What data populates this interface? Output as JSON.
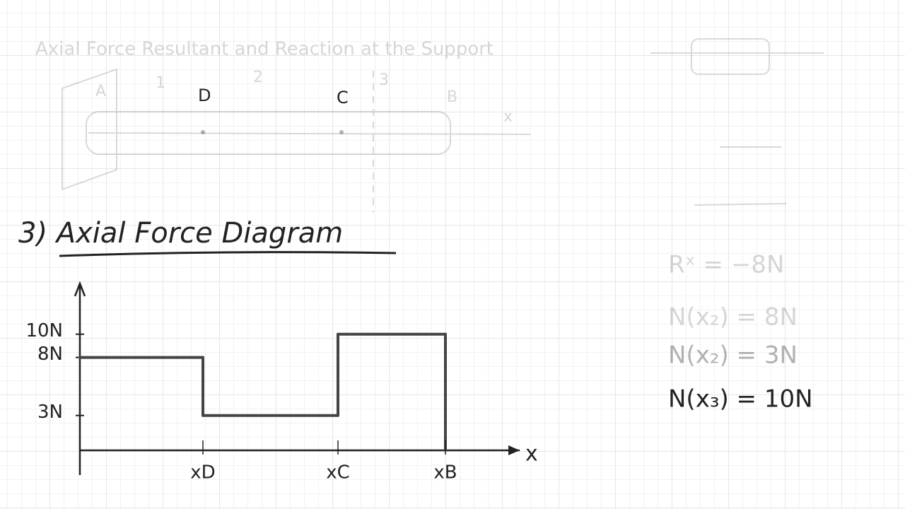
{
  "heading": "Axial Force Resultant and Reaction at the Support",
  "beam": {
    "points": [
      "A",
      "D",
      "C",
      "B"
    ],
    "sections": [
      "1",
      "2",
      "3"
    ],
    "axis": "x"
  },
  "section_title": "3)  Axial Force Diagram",
  "chart_data": {
    "type": "step",
    "categories": [
      "xD",
      "xC",
      "xB"
    ],
    "values": [
      8,
      3,
      10
    ],
    "ylim": [
      0,
      14
    ],
    "yticks": [
      {
        "value": 3,
        "label": "3N"
      },
      {
        "value": 8,
        "label": "8N"
      },
      {
        "value": 10,
        "label": "10N"
      }
    ],
    "x_label": "x",
    "color": "#444444"
  },
  "notes": {
    "reaction": "Rˣ = −8N",
    "equations": [
      "N(x₂) = 8N",
      "N(x₂) = 3N",
      "N(x₃) = 10N"
    ]
  }
}
